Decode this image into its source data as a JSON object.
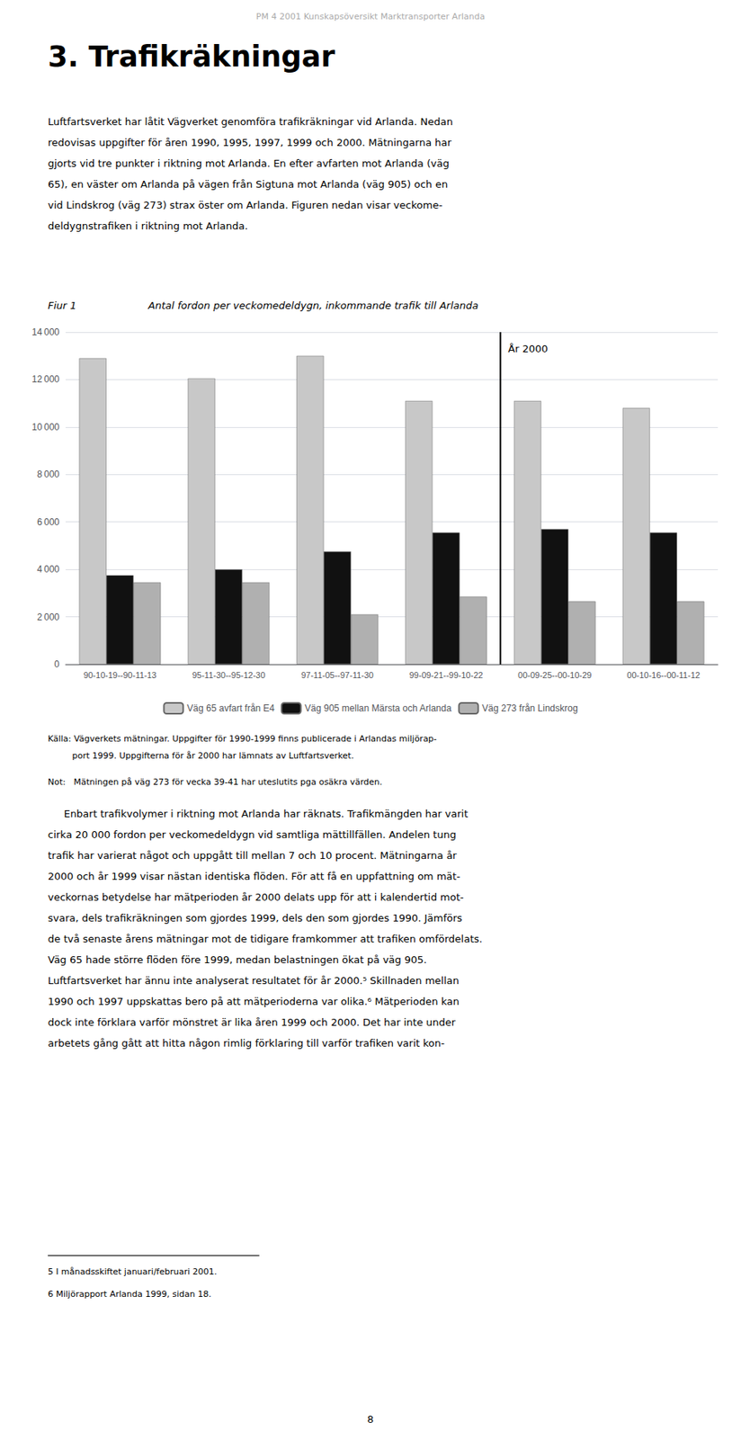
{
  "page": {
    "header": "PM 4 2001 Kunskapsöversikt Marktransporter Arlanda",
    "section_title": "3. Trafikräkningar",
    "para1_lines": [
      "Luftfartsverket har låtit Vägverket genomföra trafikräkningar vid Arlanda. Nedan",
      "redovisas uppgifter för åren 1990, 1995, 1997, 1999 och 2000. Mätningarna har",
      "gjorts vid tre punkter i riktning mot Arlanda. En efter avfarten mot Arlanda (väg",
      "65), en väster om Arlanda på vägen från Sigtuna mot Arlanda (väg 905) och en",
      "vid Lindskrog (väg 273) strax öster om Arlanda. Figuren nedan visar veckome-",
      "deldygnstrafiken i riktning mot Arlanda."
    ],
    "fig_label": "Fiur 1",
    "source_lines": [
      "Källa: Vägverkets mätningar. Uppgifter för 1990-1999 finns publicerade i Arlandas miljörap-",
      "         port 1999. Uppgifterna för år 2000 har lämnats av Luftfartsverket."
    ],
    "note": "Not:   Mätningen på väg 273 för vecka 39-41 har uteslutits pga osäkra värden.",
    "para2_lines": [
      "     Enbart trafikvolymer i riktning mot Arlanda har räknats. Trafikmängden har varit",
      "cirka 20 000 fordon per veckomedeldygn vid samtliga mättillfällen. Andelen tung",
      "trafik har varierat något och uppgått till mellan 7 och 10 procent. Mätningarna år",
      "2000 och år 1999 visar nästan identiska flöden. För att få en uppfattning om mät-",
      "veckornas betydelse har mätperioden år 2000 delats upp för att i kalendertid mot-",
      "svara, dels trafikräkningen som gjordes 1999, dels den som gjordes 1990. Jämförs",
      "de två senaste årens mätningar mot de tidigare framkommer att trafiken omfördelats.",
      "Väg 65 hade större flöden före 1999, medan belastningen ökat på väg 905.",
      "Luftfartsverket har ännu inte analyserat resultatet för år 2000.⁵ Skillnaden mellan",
      "1990 och 1997 uppskattas bero på att mätperioderna var olika.⁶ Mätperioden kan",
      "dock inte förklara varför mönstret är lika åren 1999 och 2000. Det har inte under",
      "arbetets gång gått att hitta någon rimlig förklaring till varför trafiken varit kon-"
    ],
    "footnotes": [
      "5 I månadsskiftet januari/februari 2001.",
      "6 Miljörapport Arlanda 1999, sidan 18."
    ],
    "page_number": "8"
  },
  "chart_data": {
    "type": "bar",
    "title": "Antal fordon per veckomedeldygn, inkommande trafik till Arlanda",
    "categories": [
      "90-10-19--90-11-13",
      "95-11-30--95-12-30",
      "97-11-05--97-11-30",
      "99-09-21--99-10-22",
      "00-09-25--00-10-29",
      "00-10-16--00-11-12"
    ],
    "series": [
      {
        "name": "Väg 65 avfart från E4",
        "color": "#c8c8c8",
        "values": [
          12900,
          12050,
          13000,
          11100,
          11100,
          10800
        ]
      },
      {
        "name": "Väg 905 mellan Märsta och Arlanda",
        "color": "#111111",
        "values": [
          3750,
          4000,
          4750,
          5550,
          5700,
          5550
        ]
      },
      {
        "name": "Väg 273 från Lindskrog",
        "color": "#b0b0b0",
        "values": [
          3450,
          3450,
          2100,
          2850,
          2650,
          2650
        ]
      }
    ],
    "ylim": [
      0,
      14000
    ],
    "yticks": [
      0,
      {
        "value": 2000,
        "label": "2 000"
      },
      {
        "value": 4000,
        "label": "4 000"
      },
      {
        "value": 6000,
        "label": "6 000"
      },
      {
        "value": 8000,
        "label": "8 000"
      },
      {
        "value": 10000,
        "label": "10 000"
      },
      {
        "value": 12000,
        "label": "12 000"
      },
      {
        "value": 14000,
        "label": "14 000"
      }
    ],
    "grid": true,
    "legend": "bottom",
    "annotations": [
      {
        "text": "År 2000",
        "x": "00-09-25--00-10-29",
        "y": 13300
      }
    ]
  }
}
